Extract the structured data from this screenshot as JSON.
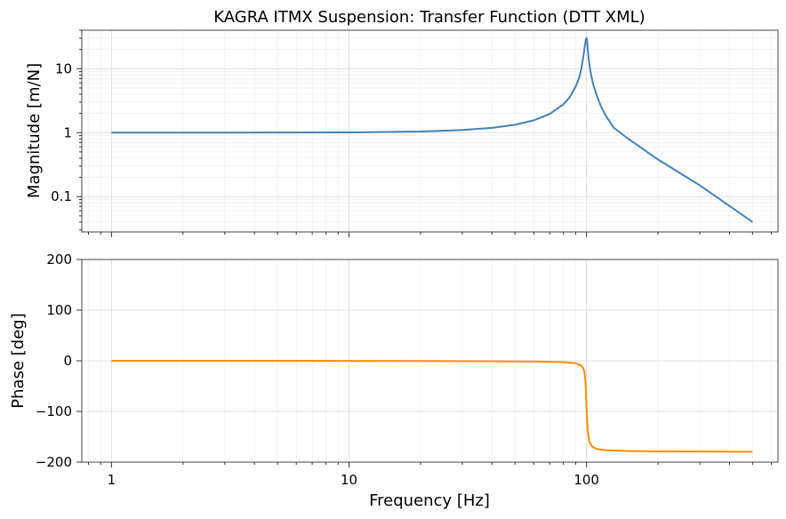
{
  "chart_data": [
    {
      "panel": "magnitude",
      "type": "line",
      "title": "KAGRA ITMX Suspension: Transfer Function (DTT XML)",
      "xlabel": "",
      "ylabel": "Magnitude [m/N]",
      "xscale": "log",
      "yscale": "log",
      "xlim": [
        0.75,
        640
      ],
      "ylim": [
        0.028,
        40
      ],
      "yticks": [
        0.1,
        1,
        10
      ],
      "ytick_labels": [
        "0.1",
        "1",
        "10"
      ],
      "grid": true,
      "line_color": "#4682b4",
      "x": [
        1,
        2,
        5,
        10,
        20,
        30,
        40,
        50,
        60,
        70,
        80,
        85,
        90,
        93,
        95,
        97,
        98,
        99,
        99.5,
        100,
        100.5,
        101,
        102,
        103,
        105,
        107,
        110,
        115,
        120,
        130,
        150,
        200,
        300,
        500
      ],
      "y": [
        1.0,
        1.0,
        1.003,
        1.01,
        1.04,
        1.1,
        1.19,
        1.33,
        1.56,
        1.96,
        2.78,
        3.6,
        5.26,
        7.1,
        9.75,
        15.5,
        20.4,
        26.5,
        29.5,
        30.0,
        27.5,
        22.3,
        14.9,
        11.0,
        7.35,
        5.5,
        3.95,
        2.58,
        1.9,
        1.2,
        0.8,
        0.38,
        0.15,
        0.04
      ]
    },
    {
      "panel": "phase",
      "type": "line",
      "title": "",
      "xlabel": "Frequency [Hz]",
      "ylabel": "Phase [deg]",
      "xscale": "log",
      "yscale": "linear",
      "xlim": [
        0.75,
        640
      ],
      "ylim": [
        -200,
        200
      ],
      "yticks": [
        -200,
        -100,
        0,
        100,
        200
      ],
      "ytick_labels": [
        "−200",
        "−100",
        "0",
        "100",
        "200"
      ],
      "xticks": [
        1,
        10,
        100
      ],
      "xtick_labels": [
        "1",
        "10",
        "100"
      ],
      "grid": true,
      "line_color": "#ff8c00",
      "x": [
        1,
        5,
        10,
        20,
        40,
        60,
        80,
        90,
        95,
        97,
        98,
        99,
        99.5,
        100,
        100.5,
        101,
        102,
        103,
        105,
        110,
        120,
        150,
        200,
        300,
        500
      ],
      "y": [
        0,
        -0.1,
        -0.2,
        -0.4,
        -0.8,
        -1.3,
        -2.7,
        -4.8,
        -9.5,
        -15,
        -22,
        -41,
        -61,
        -90,
        -115,
        -131,
        -150,
        -161,
        -168,
        -174,
        -176.5,
        -178,
        -178.7,
        -179.2,
        -179.6
      ]
    }
  ]
}
